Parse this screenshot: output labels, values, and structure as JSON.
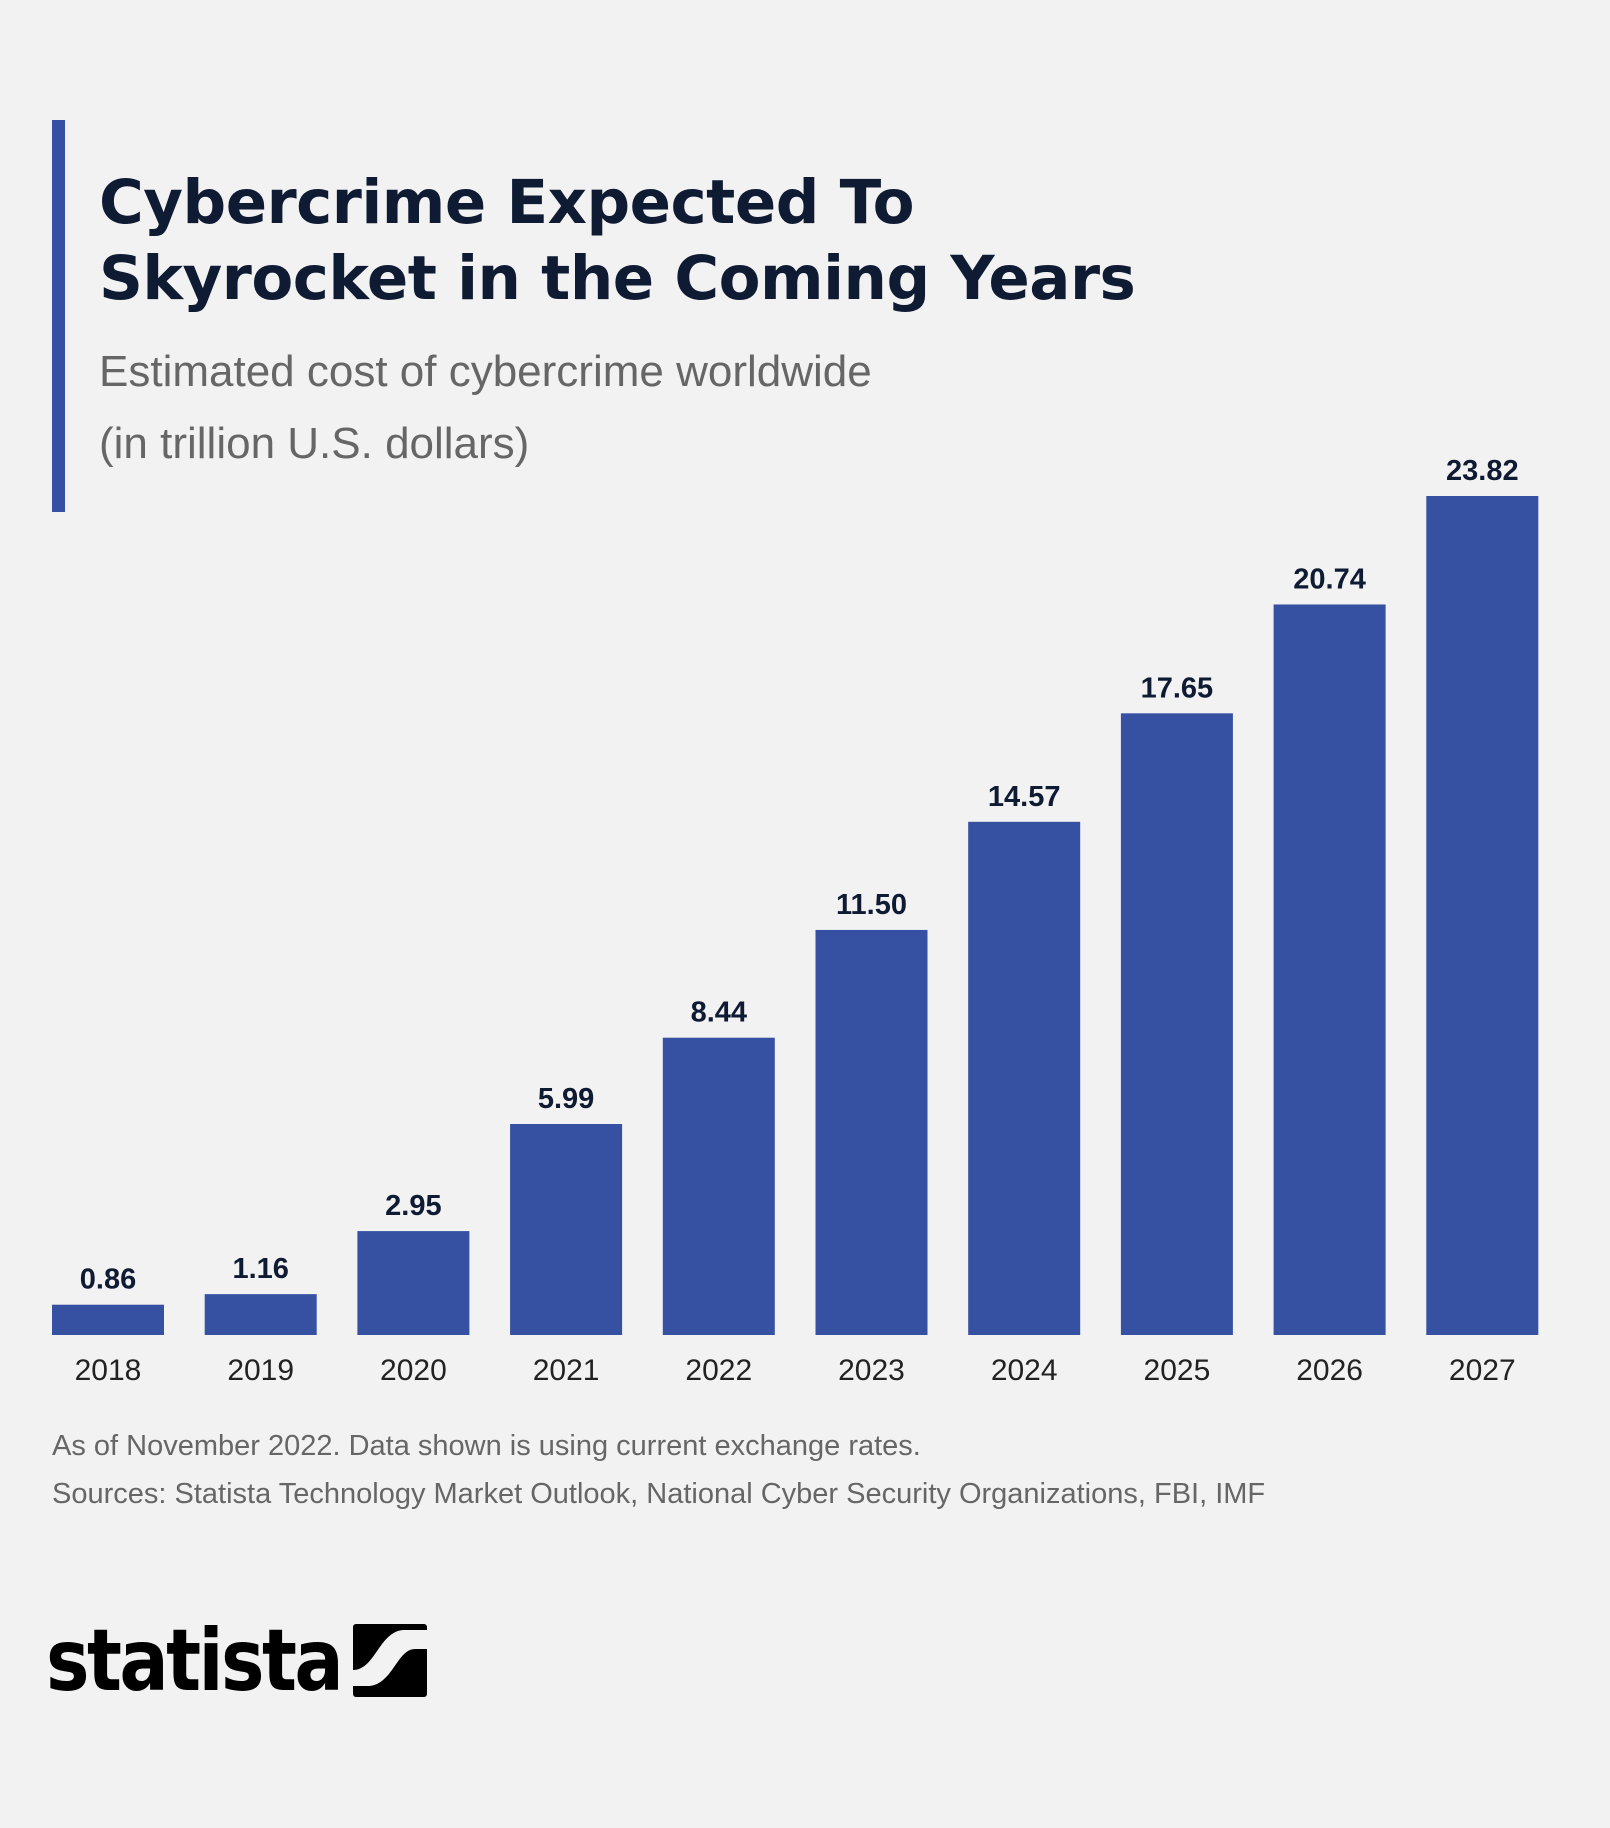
{
  "title_lines": [
    "Cybercrime Expected To",
    "Skyrocket in the Coming Years"
  ],
  "subtitle_lines": [
    "Estimated cost of cybercrime worldwide",
    "(in trillion U.S. dollars)"
  ],
  "footnotes": [
    "As of November 2022.  Data shown is using current exchange rates.",
    "Sources: Statista Technology Market Outlook, National Cyber Security Organizations, FBI, IMF"
  ],
  "logo": {
    "text": "statista",
    "icon": "statista-logo-icon"
  },
  "colors": {
    "bar": "#3650a2",
    "accent": "#3650a2",
    "background": "#f2f2f2",
    "label": "#0f1a33"
  },
  "chart_data": {
    "type": "bar",
    "title": "Cybercrime Expected To Skyrocket in the Coming Years",
    "subtitle": "Estimated cost of cybercrime worldwide (in trillion U.S. dollars)",
    "categories": [
      "2018",
      "2019",
      "2020",
      "2021",
      "2022",
      "2023",
      "2024",
      "2025",
      "2026",
      "2027"
    ],
    "values": [
      0.86,
      1.16,
      2.95,
      5.99,
      8.44,
      11.5,
      14.57,
      17.65,
      20.74,
      23.82
    ],
    "value_labels": [
      "0.86",
      "1.16",
      "2.95",
      "5.99",
      "8.44",
      "11.50",
      "14.57",
      "17.65",
      "20.74",
      "23.82"
    ],
    "xlabel": "",
    "ylabel": "",
    "ylim": [
      0,
      23.82
    ],
    "grid": false,
    "data_labels": true
  }
}
